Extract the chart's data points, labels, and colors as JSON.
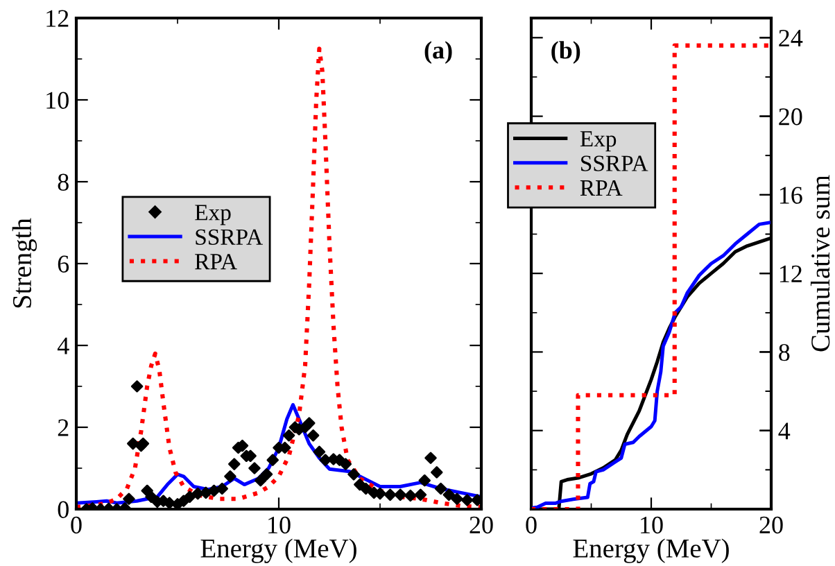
{
  "chart_data": [
    {
      "type": "line",
      "xlabel": "Energy (MeV)",
      "ylabel": "Strength",
      "annotations": [
        "(a)"
      ],
      "xlim": [
        0,
        20
      ],
      "xticks": [
        0,
        10,
        20
      ],
      "ylim": [
        0,
        12
      ],
      "yticks": [
        0,
        2,
        4,
        6,
        8,
        10,
        12
      ],
      "grid": false,
      "legend": "left",
      "series": [
        {
          "name": "Exp",
          "type": "scatter",
          "marker": "diamond",
          "color": "#000000",
          "x": [
            0.5,
            0.8,
            1.2,
            1.6,
            2.0,
            2.4,
            2.6,
            2.8,
            3.0,
            3.2,
            3.3,
            3.5,
            3.7,
            4.0,
            4.3,
            4.6,
            5.0,
            5.3,
            5.6,
            6.0,
            6.4,
            6.8,
            7.2,
            7.6,
            7.8,
            8.0,
            8.2,
            8.4,
            8.6,
            8.8,
            9.1,
            9.4,
            9.7,
            10.0,
            10.3,
            10.5,
            10.8,
            11.0,
            11.3,
            11.5,
            11.7,
            12.0,
            12.3,
            12.7,
            13.0,
            13.3,
            13.7,
            14.0,
            14.3,
            14.7,
            15.0,
            15.5,
            16.0,
            16.5,
            17.0,
            17.2,
            17.5,
            17.8,
            18.0,
            18.4,
            18.8,
            19.3,
            19.8
          ],
          "values": [
            0.0,
            0.02,
            0.0,
            0.01,
            0.0,
            0.02,
            0.25,
            1.6,
            3.0,
            1.55,
            1.6,
            0.45,
            0.3,
            0.18,
            0.2,
            0.15,
            0.12,
            0.2,
            0.3,
            0.38,
            0.4,
            0.45,
            0.5,
            0.8,
            1.1,
            1.5,
            1.55,
            1.3,
            1.3,
            1.0,
            0.7,
            0.85,
            1.2,
            1.5,
            1.5,
            1.8,
            2.0,
            1.95,
            2.0,
            2.1,
            1.8,
            1.4,
            1.2,
            1.22,
            1.2,
            1.1,
            0.85,
            0.6,
            0.5,
            0.4,
            0.38,
            0.35,
            0.35,
            0.33,
            0.35,
            0.7,
            1.25,
            0.9,
            0.5,
            0.35,
            0.25,
            0.22,
            0.22
          ]
        },
        {
          "name": "SSRPA",
          "line_style": "solid",
          "color": "#0000ff",
          "x": [
            0,
            1,
            1.5,
            2,
            3,
            4,
            4.5,
            5,
            5.3,
            5.8,
            6.5,
            7.2,
            7.8,
            8.3,
            9,
            9.5,
            10,
            10.4,
            10.7,
            11,
            11.5,
            12,
            12.5,
            13,
            13.5,
            14,
            15,
            16,
            17,
            18,
            19,
            20
          ],
          "values": [
            0.15,
            0.18,
            0.2,
            0.15,
            0.2,
            0.3,
            0.6,
            0.85,
            0.8,
            0.55,
            0.48,
            0.55,
            0.75,
            0.6,
            0.75,
            1.0,
            1.5,
            2.2,
            2.55,
            2.2,
            1.6,
            1.25,
            0.98,
            0.95,
            0.92,
            0.8,
            0.55,
            0.55,
            0.65,
            0.5,
            0.4,
            0.3
          ]
        },
        {
          "name": "RPA",
          "line_style": "dotted",
          "color": "#ff0000",
          "x": [
            0,
            1,
            1.5,
            2,
            2.5,
            2.9,
            3.2,
            3.5,
            3.7,
            3.9,
            4.1,
            4.3,
            4.6,
            4.9,
            5.3,
            6,
            7,
            8,
            9,
            9.5,
            10,
            10.5,
            11,
            11.3,
            11.5,
            11.7,
            11.85,
            12.0,
            12.15,
            12.3,
            12.5,
            12.7,
            12.9,
            13.1,
            13.4,
            14,
            15,
            16,
            17,
            18,
            19,
            20
          ],
          "values": [
            0.05,
            0.1,
            0.15,
            0.25,
            0.5,
            1.0,
            1.9,
            3.0,
            3.5,
            3.8,
            3.4,
            2.6,
            1.5,
            0.9,
            0.55,
            0.35,
            0.25,
            0.25,
            0.4,
            0.55,
            0.8,
            1.3,
            2.3,
            3.5,
            5.5,
            8.0,
            10.0,
            11.25,
            10.7,
            9.0,
            6.5,
            4.5,
            3.0,
            2.0,
            1.2,
            0.75,
            0.45,
            0.3,
            0.25,
            0.15,
            0.08,
            0.05
          ]
        }
      ]
    },
    {
      "type": "line",
      "xlabel": "Energy (MeV)",
      "y2label": "Cumulative sum",
      "annotations": [
        "(b)"
      ],
      "xlim": [
        0,
        20
      ],
      "xticks": [
        0,
        10,
        20
      ],
      "y2lim": [
        0,
        25
      ],
      "y2ticks": [
        {
          "value": 0,
          "label": null
        },
        4,
        8,
        12,
        16,
        20,
        24
      ],
      "grid": false,
      "legend": "left",
      "series": [
        {
          "name": "Exp",
          "axis": "y2",
          "line_style": "solid",
          "color": "#000000",
          "x": [
            0,
            2.3,
            2.5,
            3,
            4,
            5,
            6,
            7,
            7.5,
            8,
            8.5,
            9,
            9.5,
            10,
            10.5,
            11,
            11.5,
            12,
            13,
            14,
            15,
            16,
            16.5,
            17,
            18,
            19,
            20
          ],
          "values": [
            0,
            0,
            1.4,
            1.5,
            1.6,
            1.8,
            2.1,
            2.5,
            3.0,
            3.8,
            4.4,
            5.0,
            5.8,
            6.6,
            7.5,
            8.5,
            9.2,
            9.8,
            10.8,
            11.5,
            12.0,
            12.5,
            12.8,
            13.1,
            13.4,
            13.6,
            13.8
          ]
        },
        {
          "name": "SSRPA",
          "axis": "y2",
          "line_style": "solid",
          "color": "#0000ff",
          "x": [
            0,
            0.5,
            1.2,
            2,
            2.5,
            3.5,
            4.7,
            4.9,
            5.2,
            5.4,
            6,
            7,
            7.5,
            7.8,
            8.5,
            9,
            10,
            10.3,
            10.5,
            10.8,
            11,
            11.5,
            12,
            12.5,
            13,
            14,
            15,
            16,
            17,
            18,
            19,
            20
          ],
          "values": [
            0.05,
            0.1,
            0.3,
            0.3,
            0.4,
            0.5,
            0.6,
            1.3,
            1.4,
            1.9,
            2.0,
            2.4,
            2.6,
            3.3,
            3.4,
            3.7,
            4.2,
            4.5,
            6.0,
            7.0,
            8.3,
            9.0,
            10.0,
            10.3,
            11.0,
            11.9,
            12.5,
            12.9,
            13.5,
            14.0,
            14.5,
            14.6
          ]
        },
        {
          "name": "RPA",
          "axis": "y2",
          "line_style": "dotted",
          "color": "#ff0000",
          "x": [
            0,
            3.9,
            3.9,
            11.95,
            11.95,
            20
          ],
          "values": [
            0,
            0,
            5.8,
            5.8,
            23.6,
            23.6
          ]
        }
      ]
    }
  ]
}
